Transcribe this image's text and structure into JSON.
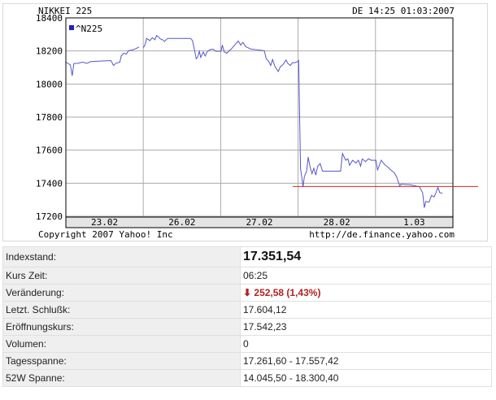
{
  "chart_data": {
    "type": "line",
    "title": "NIKKEI 225",
    "timestamp": "DE 14:25 01:03:2007",
    "legend": {
      "label": "^N225",
      "placement": "top-left"
    },
    "copyright": "Copyright 2007 Yahoo! Inc",
    "source_url": "http://de.finance.yahoo.com",
    "ylim": [
      17200,
      18400
    ],
    "yticks": [
      18400,
      18200,
      18000,
      17800,
      17600,
      17400,
      17200
    ],
    "x_categories": [
      "23.02",
      "26.02",
      "27.02",
      "28.02",
      "1.03"
    ],
    "grid": true,
    "colors": {
      "series": "#5555cc",
      "reference": "#dd2222",
      "legend_swatch": "#2222bb",
      "axis_band": "#e4e4e4"
    },
    "reference_line": 17380,
    "series": [
      {
        "name": "^N225",
        "segments": [
          [
            [
              0,
              18132
            ],
            [
              0.058,
              18116
            ],
            [
              0.082,
              18050
            ],
            [
              0.103,
              18124
            ],
            [
              0.152,
              18125
            ],
            [
              0.214,
              18132
            ],
            [
              0.275,
              18125
            ],
            [
              0.316,
              18135
            ],
            [
              0.378,
              18137
            ],
            [
              0.583,
              18142
            ],
            [
              0.616,
              18112
            ],
            [
              0.645,
              18125
            ],
            [
              0.698,
              18132
            ],
            [
              0.715,
              18170
            ],
            [
              0.748,
              18186
            ],
            [
              0.781,
              18181
            ],
            [
              0.809,
              18202
            ],
            [
              0.863,
              18206
            ],
            [
              0.904,
              18214
            ],
            [
              0.945,
              18224
            ]
          ],
          [
            [
              1.002,
              18219
            ],
            [
              1.027,
              18243
            ],
            [
              1.043,
              18276
            ],
            [
              1.085,
              18263
            ],
            [
              1.117,
              18280
            ],
            [
              1.15,
              18268
            ],
            [
              1.171,
              18293
            ],
            [
              1.2,
              18284
            ],
            [
              1.22,
              18273
            ],
            [
              1.249,
              18268
            ],
            [
              1.273,
              18257
            ],
            [
              1.315,
              18276
            ],
            [
              1.356,
              18276
            ],
            [
              1.61,
              18276
            ],
            [
              1.635,
              18263
            ],
            [
              1.66,
              18211
            ],
            [
              1.684,
              18153
            ],
            [
              1.701,
              18161
            ],
            [
              1.725,
              18198
            ],
            [
              1.742,
              18161
            ],
            [
              1.775,
              18194
            ],
            [
              1.799,
              18170
            ],
            [
              1.824,
              18194
            ],
            [
              1.857,
              18207
            ],
            [
              1.898,
              18211
            ],
            [
              1.939,
              18198
            ],
            [
              2.005,
              18199
            ],
            [
              2.021,
              18235
            ],
            [
              2.046,
              18194
            ],
            [
              2.079,
              18186
            ],
            [
              2.103,
              18198
            ],
            [
              2.136,
              18211
            ],
            [
              2.165,
              18227
            ],
            [
              2.194,
              18243
            ],
            [
              2.227,
              18260
            ],
            [
              2.259,
              18235
            ],
            [
              2.288,
              18252
            ],
            [
              2.321,
              18227
            ],
            [
              2.391,
              18211
            ],
            [
              2.563,
              18202
            ],
            [
              2.588,
              18153
            ],
            [
              2.621,
              18137
            ],
            [
              2.646,
              18112
            ],
            [
              2.67,
              18148
            ],
            [
              2.703,
              18104
            ],
            [
              2.744,
              18076
            ],
            [
              2.769,
              18104
            ],
            [
              2.802,
              18116
            ],
            [
              2.843,
              18145
            ],
            [
              2.867,
              18125
            ],
            [
              2.9,
              18112
            ],
            [
              2.925,
              18129
            ],
            [
              2.958,
              18129
            ],
            [
              2.999,
              18137
            ],
            [
              3.007,
              18142
            ],
            [
              3.032,
              17490
            ],
            [
              3.064,
              17378
            ],
            [
              3.081,
              17440
            ],
            [
              3.11,
              17473
            ],
            [
              3.13,
              17558
            ],
            [
              3.155,
              17498
            ],
            [
              3.18,
              17457
            ],
            [
              3.204,
              17490
            ],
            [
              3.229,
              17449
            ],
            [
              3.253,
              17503
            ],
            [
              3.286,
              17519
            ],
            [
              3.315,
              17473
            ],
            [
              3.549,
              17473
            ],
            [
              3.574,
              17580
            ],
            [
              3.615,
              17539
            ],
            [
              3.644,
              17547
            ],
            [
              3.664,
              17509
            ],
            [
              3.705,
              17539
            ],
            [
              3.747,
              17522
            ],
            [
              3.779,
              17539
            ],
            [
              3.808,
              17503
            ],
            [
              3.829,
              17547
            ],
            [
              3.87,
              17531
            ],
            [
              3.911,
              17547
            ],
            [
              3.944,
              17539
            ],
            [
              4.005,
              17539
            ],
            [
              4.026,
              17481
            ],
            [
              4.075,
              17539
            ],
            [
              4.116,
              17514
            ],
            [
              4.157,
              17498
            ],
            [
              4.207,
              17476
            ],
            [
              4.239,
              17465
            ],
            [
              4.272,
              17440
            ],
            [
              4.313,
              17383
            ],
            [
              4.33,
              17394
            ],
            [
              4.445,
              17391
            ],
            [
              4.568,
              17378
            ],
            [
              4.609,
              17342
            ],
            [
              4.63,
              17252
            ],
            [
              4.65,
              17290
            ],
            [
              4.691,
              17285
            ],
            [
              4.724,
              17326
            ],
            [
              4.757,
              17317
            ],
            [
              4.782,
              17342
            ],
            [
              4.806,
              17375
            ],
            [
              4.831,
              17342
            ],
            [
              4.864,
              17339
            ]
          ]
        ]
      }
    ]
  },
  "quote_table": {
    "rows": [
      {
        "label": "Indexstand:",
        "value": "17.351,54"
      },
      {
        "label": "Kurs Zeit:",
        "value": "06:25"
      },
      {
        "label": "Veränderung:",
        "value": "252,58 (1,43%)",
        "direction": "down",
        "icon": "arrow-down-icon",
        "color": "#b22222"
      },
      {
        "label": "Letzt. Schlußk:",
        "value": "17.604,12"
      },
      {
        "label": "Eröffnungskurs:",
        "value": "17.542,23"
      },
      {
        "label": "Volumen:",
        "value": "0"
      },
      {
        "label": "Tagesspanne:",
        "value": "17.261,60 - 17.557,42"
      },
      {
        "label": "52W Spanne:",
        "value": "14.045,50 - 18.300,40"
      }
    ]
  }
}
